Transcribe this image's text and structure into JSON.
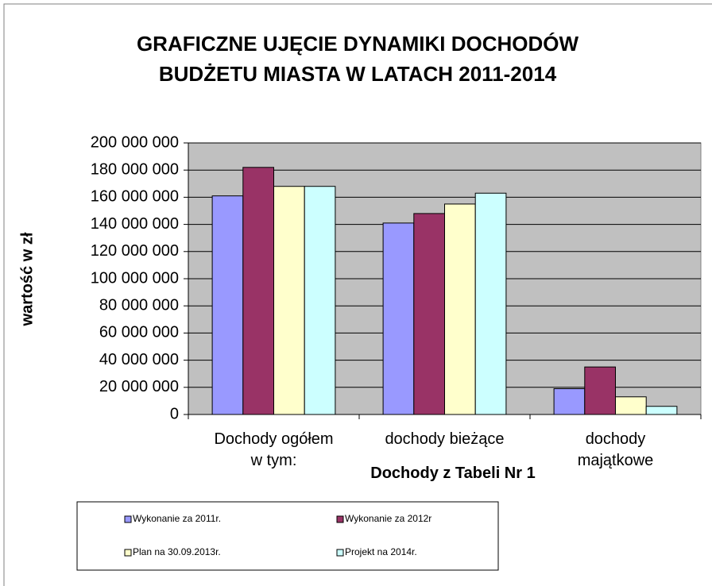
{
  "chart_data": {
    "type": "bar",
    "title": "GRAFICZNE UJĘCIE DYNAMIKI DOCHODÓW\nBUDŻETU MIASTA W LATACH 2011-2014",
    "x_label": "Dochody z Tabeli Nr 1",
    "y_label": "wartość w zł",
    "categories": [
      "Dochody ogółem\nw tym:",
      "dochody bieżące",
      "dochody\nmajątkowe"
    ],
    "series": [
      {
        "name": "Wykonanie za 2011r.",
        "color": "#9999ff",
        "values": [
          161000000,
          141000000,
          19000000
        ]
      },
      {
        "name": "Wykonanie za 2012r",
        "color": "#993366",
        "values": [
          182000000,
          148000000,
          35000000
        ]
      },
      {
        "name": "Plan na 30.09.2013r.",
        "color": "#ffffcc",
        "values": [
          168000000,
          155000000,
          13000000
        ]
      },
      {
        "name": "Projekt na 2014r.",
        "color": "#ccffff",
        "values": [
          168000000,
          163000000,
          6000000
        ]
      }
    ],
    "ylim": [
      0,
      200000000
    ],
    "yticks": [
      0,
      {
        "value": 20000000,
        "label": "20 000 000"
      },
      {
        "value": 40000000,
        "label": "40 000 000"
      },
      {
        "value": 60000000,
        "label": "60 000 000"
      },
      {
        "value": 80000000,
        "label": "80 000 000"
      },
      {
        "value": 100000000,
        "label": "100 000 000"
      },
      {
        "value": 120000000,
        "label": "120 000 000"
      },
      {
        "value": 140000000,
        "label": "140 000 000"
      },
      {
        "value": 160000000,
        "label": "160 000 000"
      },
      {
        "value": 180000000,
        "label": "180 000 000"
      },
      {
        "value": 200000000,
        "label": "200 000 000"
      }
    ],
    "grid": true,
    "plot_background": "#c0c0c0",
    "legend": "bottom"
  }
}
